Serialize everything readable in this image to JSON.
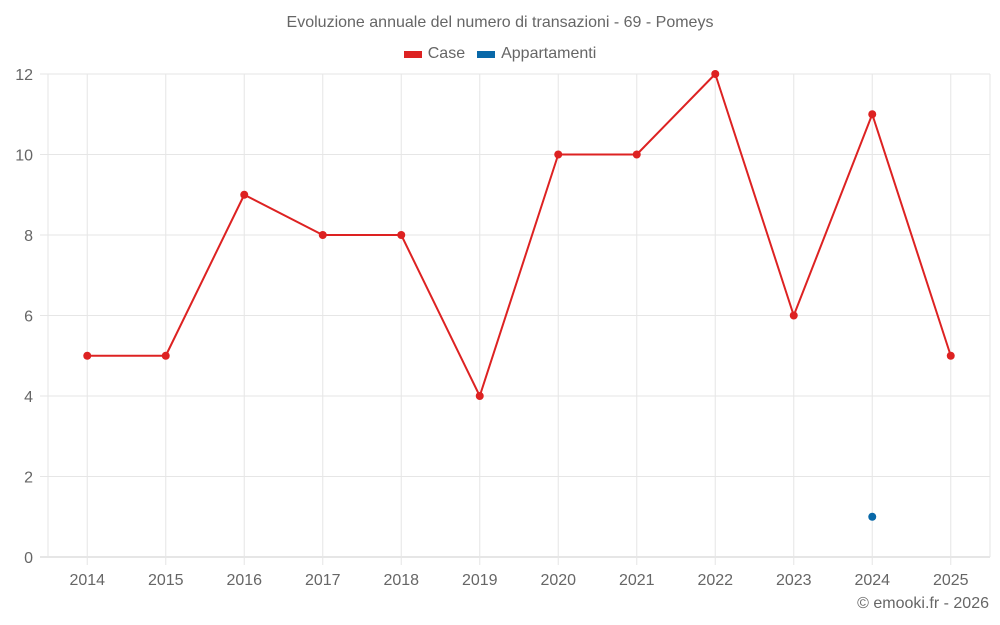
{
  "title": "Evoluzione annuale del numero di transazioni - 69 - Pomeys",
  "legend": [
    {
      "label": "Case",
      "color": "#dd2222"
    },
    {
      "label": "Appartamenti",
      "color": "#0868a8"
    }
  ],
  "credits": "© emooki.fr - 2026",
  "chart_data": {
    "type": "line",
    "title": "Evoluzione annuale del numero di transazioni - 69 - Pomeys",
    "xlabel": "",
    "ylabel": "",
    "categories": [
      "2014",
      "2015",
      "2016",
      "2017",
      "2018",
      "2019",
      "2020",
      "2021",
      "2022",
      "2023",
      "2024",
      "2025"
    ],
    "series": [
      {
        "name": "Case",
        "color": "#dd2222",
        "values": [
          5,
          5,
          9,
          8,
          8,
          4,
          10,
          10,
          12,
          6,
          11,
          5
        ]
      },
      {
        "name": "Appartamenti",
        "color": "#0868a8",
        "values": [
          null,
          null,
          null,
          null,
          null,
          null,
          null,
          null,
          null,
          null,
          1,
          null
        ]
      }
    ],
    "yticks": [
      0,
      2,
      4,
      6,
      8,
      10,
      12
    ],
    "ylim": [
      0,
      12
    ],
    "grid": true,
    "legend_position": "top-center"
  }
}
